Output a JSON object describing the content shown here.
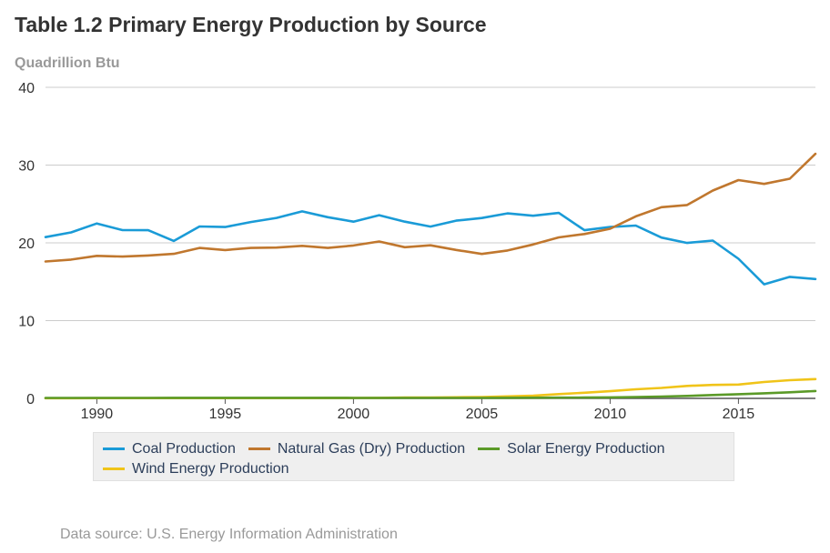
{
  "title": "Table 1.2 Primary Energy Production by Source",
  "units": "Quadrillion Btu",
  "source": "Data source: U.S. Energy Information Administration",
  "chart_data": {
    "type": "line",
    "title": "Table 1.2 Primary Energy Production by Source",
    "ylabel": "Quadrillion Btu",
    "xlabel": "",
    "xlim": [
      1988,
      2018
    ],
    "ylim": [
      0,
      40
    ],
    "xticks": [
      1990,
      1995,
      2000,
      2005,
      2010,
      2015
    ],
    "yticks": [
      0,
      10,
      20,
      30,
      40
    ],
    "grid": true,
    "legend_position": "bottom",
    "x": [
      1988,
      1989,
      1990,
      1991,
      1992,
      1993,
      1994,
      1995,
      1996,
      1997,
      1998,
      1999,
      2000,
      2001,
      2002,
      2003,
      2004,
      2005,
      2006,
      2007,
      2008,
      2009,
      2010,
      2011,
      2012,
      2013,
      2014,
      2015,
      2016,
      2017,
      2018
    ],
    "series": [
      {
        "name": "Coal Production",
        "color": "#1a9bd7",
        "values": [
          20.74,
          21.35,
          22.49,
          21.64,
          21.63,
          20.25,
          22.11,
          22.03,
          22.68,
          23.21,
          24.05,
          23.3,
          22.73,
          23.55,
          22.73,
          22.09,
          22.85,
          23.19,
          23.79,
          23.49,
          23.85,
          21.62,
          22.04,
          22.22,
          20.68,
          19.99,
          20.29,
          17.95,
          14.67,
          15.63,
          15.35
        ]
      },
      {
        "name": "Natural Gas (Dry) Production",
        "color": "#c0772e",
        "values": [
          17.6,
          17.85,
          18.33,
          18.23,
          18.38,
          18.58,
          19.35,
          19.08,
          19.34,
          19.39,
          19.61,
          19.34,
          19.66,
          20.17,
          19.44,
          19.69,
          19.09,
          18.57,
          19.02,
          19.79,
          20.7,
          21.14,
          21.81,
          23.4,
          24.59,
          24.86,
          26.72,
          28.07,
          27.58,
          28.24,
          31.45
        ]
      },
      {
        "name": "Solar Energy Production",
        "color": "#5b9a28",
        "values": [
          0.06,
          0.06,
          0.06,
          0.06,
          0.06,
          0.07,
          0.07,
          0.07,
          0.07,
          0.07,
          0.07,
          0.07,
          0.06,
          0.06,
          0.06,
          0.06,
          0.06,
          0.06,
          0.07,
          0.08,
          0.09,
          0.1,
          0.13,
          0.18,
          0.23,
          0.31,
          0.43,
          0.54,
          0.65,
          0.78,
          0.95
        ]
      },
      {
        "name": "Wind Energy Production",
        "color": "#f0c419",
        "values": [
          0.02,
          0.02,
          0.03,
          0.03,
          0.03,
          0.03,
          0.04,
          0.03,
          0.03,
          0.03,
          0.03,
          0.05,
          0.06,
          0.07,
          0.11,
          0.12,
          0.14,
          0.18,
          0.26,
          0.34,
          0.55,
          0.72,
          0.92,
          1.17,
          1.34,
          1.6,
          1.73,
          1.78,
          2.1,
          2.34,
          2.48
        ]
      }
    ]
  }
}
